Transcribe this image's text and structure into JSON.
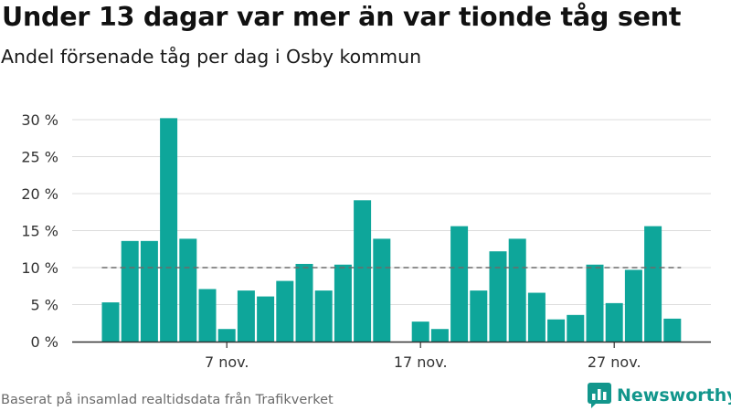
{
  "header": {
    "title": "Under 13 dagar var mer än var tionde tåg sent",
    "subtitle": "Andel försenade tåg per dag i Osby kommun"
  },
  "footer": {
    "source": "Baserat på insamlad realtidsdata från Trafikverket",
    "brand": "Newsworthy"
  },
  "colors": {
    "bar": "#0ea69a",
    "reference_line": "#6b6b6b",
    "grid": "#dcdcdc",
    "brand": "#12968c"
  },
  "icons": {
    "brand_logo": "bar-chart-speech-bubble-icon"
  },
  "chart_data": {
    "type": "bar",
    "x": [
      1,
      2,
      3,
      4,
      5,
      6,
      7,
      8,
      9,
      10,
      11,
      12,
      13,
      14,
      15,
      16,
      17,
      18,
      19,
      20,
      21,
      22,
      23,
      24,
      25,
      26,
      27,
      28,
      29,
      30
    ],
    "values": [
      5.3,
      13.6,
      13.6,
      30.2,
      13.9,
      7.1,
      1.7,
      6.9,
      6.1,
      8.2,
      10.5,
      6.9,
      10.4,
      19.1,
      13.9,
      null,
      2.7,
      1.7,
      15.6,
      6.9,
      12.2,
      13.9,
      6.6,
      3.0,
      3.6,
      10.4,
      5.2,
      9.7,
      15.6,
      3.1
    ],
    "xticks": [
      {
        "x": 7,
        "label": "7 nov."
      },
      {
        "x": 17,
        "label": "17 nov."
      },
      {
        "x": 27,
        "label": "27 nov."
      }
    ],
    "yticks": [
      {
        "value": 0,
        "label": "0 %"
      },
      {
        "value": 5,
        "label": "5 %"
      },
      {
        "value": 10,
        "label": "10 %"
      },
      {
        "value": 15,
        "label": "15 %"
      },
      {
        "value": 20,
        "label": "20 %"
      },
      {
        "value": 25,
        "label": "25 %"
      },
      {
        "value": 30,
        "label": "30 %"
      }
    ],
    "ylim": [
      0,
      30
    ],
    "reference_line": 10,
    "grid": true,
    "title": "Under 13 dagar var mer än var tionde tåg sent",
    "subtitle": "Andel försenade tåg per dag i Osby kommun",
    "xlabel": "",
    "ylabel": ""
  }
}
